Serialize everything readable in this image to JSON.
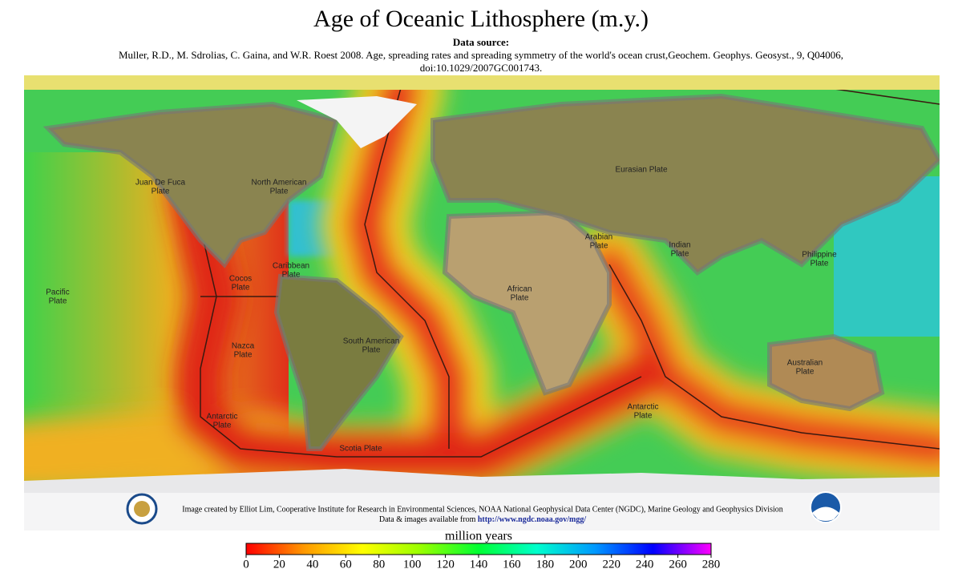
{
  "title": "Age of Oceanic Lithosphere (m.y.)",
  "source_heading": "Data source:",
  "source_text": "Muller, R.D., M. Sdrolias, C. Gaina, and W.R. Roest 2008. Age, spreading rates and spreading symmetry of the world's ocean crust,Geochem. Geophys. Geosyst., 9, Q04006,",
  "source_doi": "doi:10.1029/2007GC001743.",
  "plates": [
    [
      "Eurasian Plate"
    ],
    [
      "North American",
      "Plate"
    ],
    [
      "Juan De Fuca",
      "Plate"
    ],
    [
      "Pacific",
      "Plate"
    ],
    [
      "Cocos",
      "Plate"
    ],
    [
      "Caribbean",
      "Plate"
    ],
    [
      "Nazca",
      "Plate"
    ],
    [
      "South American",
      "Plate"
    ],
    [
      "African",
      "Plate"
    ],
    [
      "Arabian",
      "Plate"
    ],
    [
      "Indian",
      "Plate"
    ],
    [
      "Philippine",
      "Plate"
    ],
    [
      "Australian",
      "Plate"
    ],
    [
      "Antarctic",
      "Plate"
    ],
    [
      "Antarctic",
      "Plate"
    ],
    [
      "Scotia Plate"
    ]
  ],
  "credit": "Image created by Elliot Lim, Cooperative Institute for Research in Environmental Sciences,  NOAA National Geophysical Data Center (NGDC), Marine Geology and Geophysics Division",
  "credit_prefix": "Data & images available from",
  "credit_link": "http://www.ngdc.noaa.gov/mgg/",
  "colorbar": {
    "label": "million years",
    "range": [
      0,
      280
    ],
    "ticks": [
      0,
      20,
      40,
      60,
      80,
      100,
      120,
      140,
      160,
      180,
      200,
      220,
      240,
      260,
      280
    ],
    "colors": [
      "#ff0000",
      "#ff9900",
      "#ffff00",
      "#99ff00",
      "#00ff33",
      "#00ffcc",
      "#0099ff",
      "#0000ff",
      "#ff00ff"
    ]
  }
}
